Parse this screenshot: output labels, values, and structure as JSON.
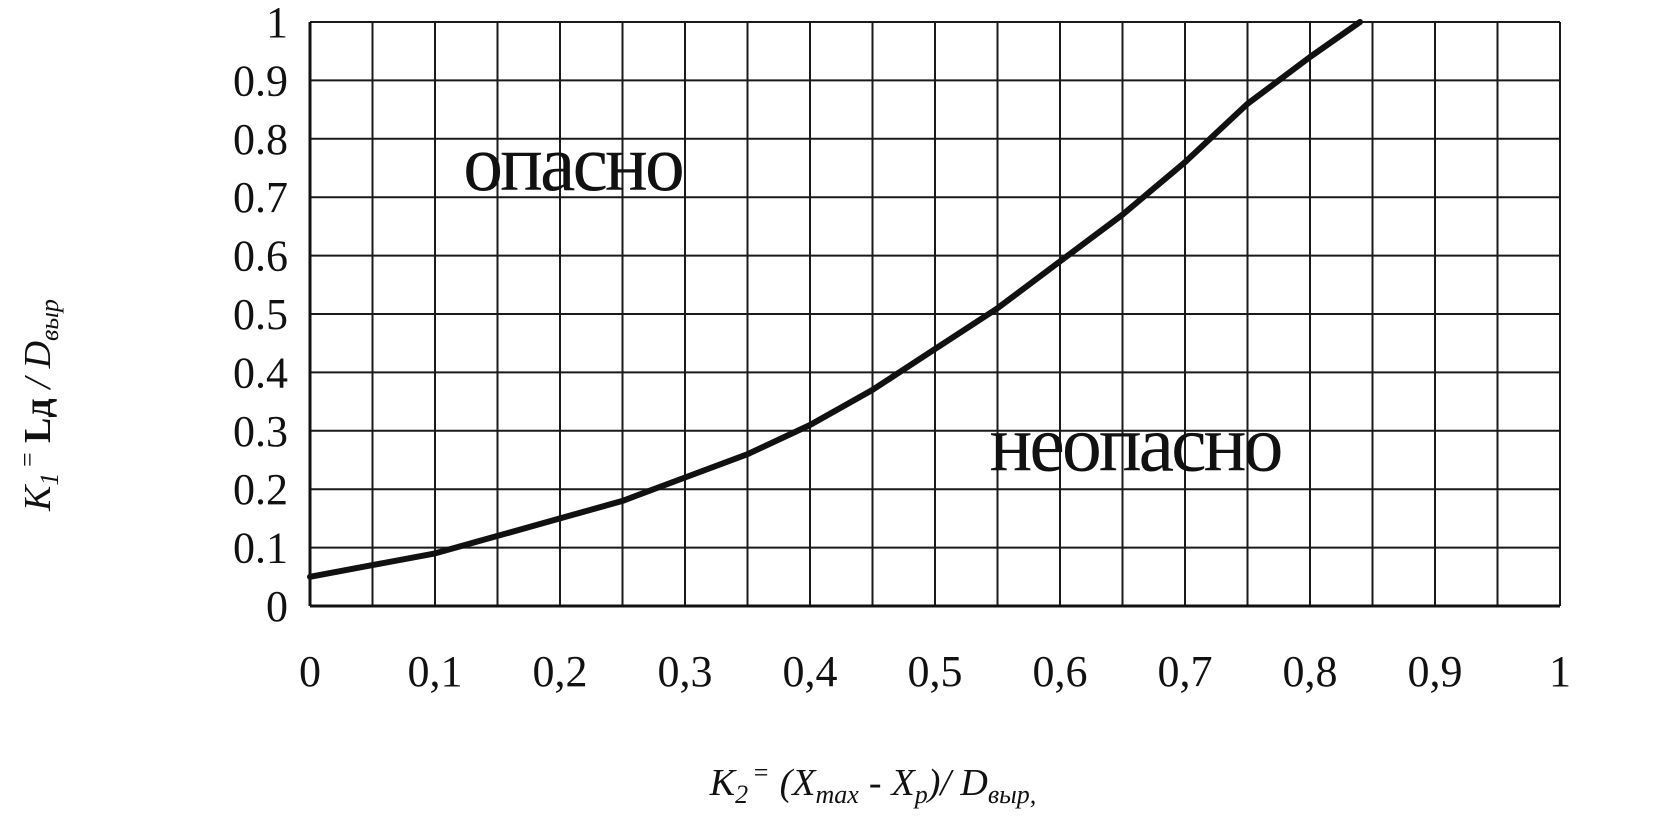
{
  "chart_data": {
    "type": "line",
    "title": "",
    "xlim": [
      0,
      1
    ],
    "ylim": [
      0,
      1
    ],
    "grid": true,
    "x_ticks": [
      {
        "value": 0,
        "label": "0"
      },
      {
        "value": 0.1,
        "label": "0,1"
      },
      {
        "value": 0.2,
        "label": "0,2"
      },
      {
        "value": 0.3,
        "label": "0,3"
      },
      {
        "value": 0.4,
        "label": "0,4"
      },
      {
        "value": 0.5,
        "label": "0,5"
      },
      {
        "value": 0.6,
        "label": "0,6"
      },
      {
        "value": 0.7,
        "label": "0,7"
      },
      {
        "value": 0.8,
        "label": "0,8"
      },
      {
        "value": 0.9,
        "label": "0,9"
      },
      {
        "value": 1,
        "label": "1"
      }
    ],
    "y_ticks": [
      {
        "value": 0,
        "label": "0"
      },
      {
        "value": 0.1,
        "label": "0.1"
      },
      {
        "value": 0.2,
        "label": "0.2"
      },
      {
        "value": 0.3,
        "label": "0.3"
      },
      {
        "value": 0.4,
        "label": "0.4"
      },
      {
        "value": 0.5,
        "label": "0.5"
      },
      {
        "value": 0.6,
        "label": "0.6"
      },
      {
        "value": 0.7,
        "label": "0.7"
      },
      {
        "value": 0.8,
        "label": "0.8"
      },
      {
        "value": 0.9,
        "label": "0.9"
      },
      {
        "value": 1,
        "label": "1"
      }
    ],
    "series": [
      {
        "x": [
          0,
          0.05,
          0.1,
          0.15,
          0.2,
          0.25,
          0.3,
          0.35,
          0.4,
          0.45,
          0.5,
          0.55,
          0.6,
          0.65,
          0.7,
          0.75,
          0.8,
          0.84
        ],
        "y": [
          0.05,
          0.07,
          0.09,
          0.12,
          0.15,
          0.18,
          0.22,
          0.26,
          0.31,
          0.37,
          0.44,
          0.51,
          0.59,
          0.67,
          0.76,
          0.86,
          0.94,
          1.0
        ]
      }
    ],
    "annotations": [
      {
        "text": "опасно",
        "x": 0.21,
        "y": 0.76
      },
      {
        "text": "неопасно",
        "x": 0.66,
        "y": 0.28
      }
    ],
    "xlabel": {
      "k": "K",
      "k_sub": "2",
      "eq": "=",
      "open": "(X",
      "max_sub": "max",
      "minus": "-",
      "xp": "X",
      "p_sub": "p",
      "close": ")/ D",
      "vyr_sub": "выр,"
    },
    "ylabel": {
      "k": "K",
      "k_sub": "1",
      "eq": "=",
      "ld": "Lд",
      "slash": "/ D",
      "vyr_sub": "выр"
    }
  }
}
